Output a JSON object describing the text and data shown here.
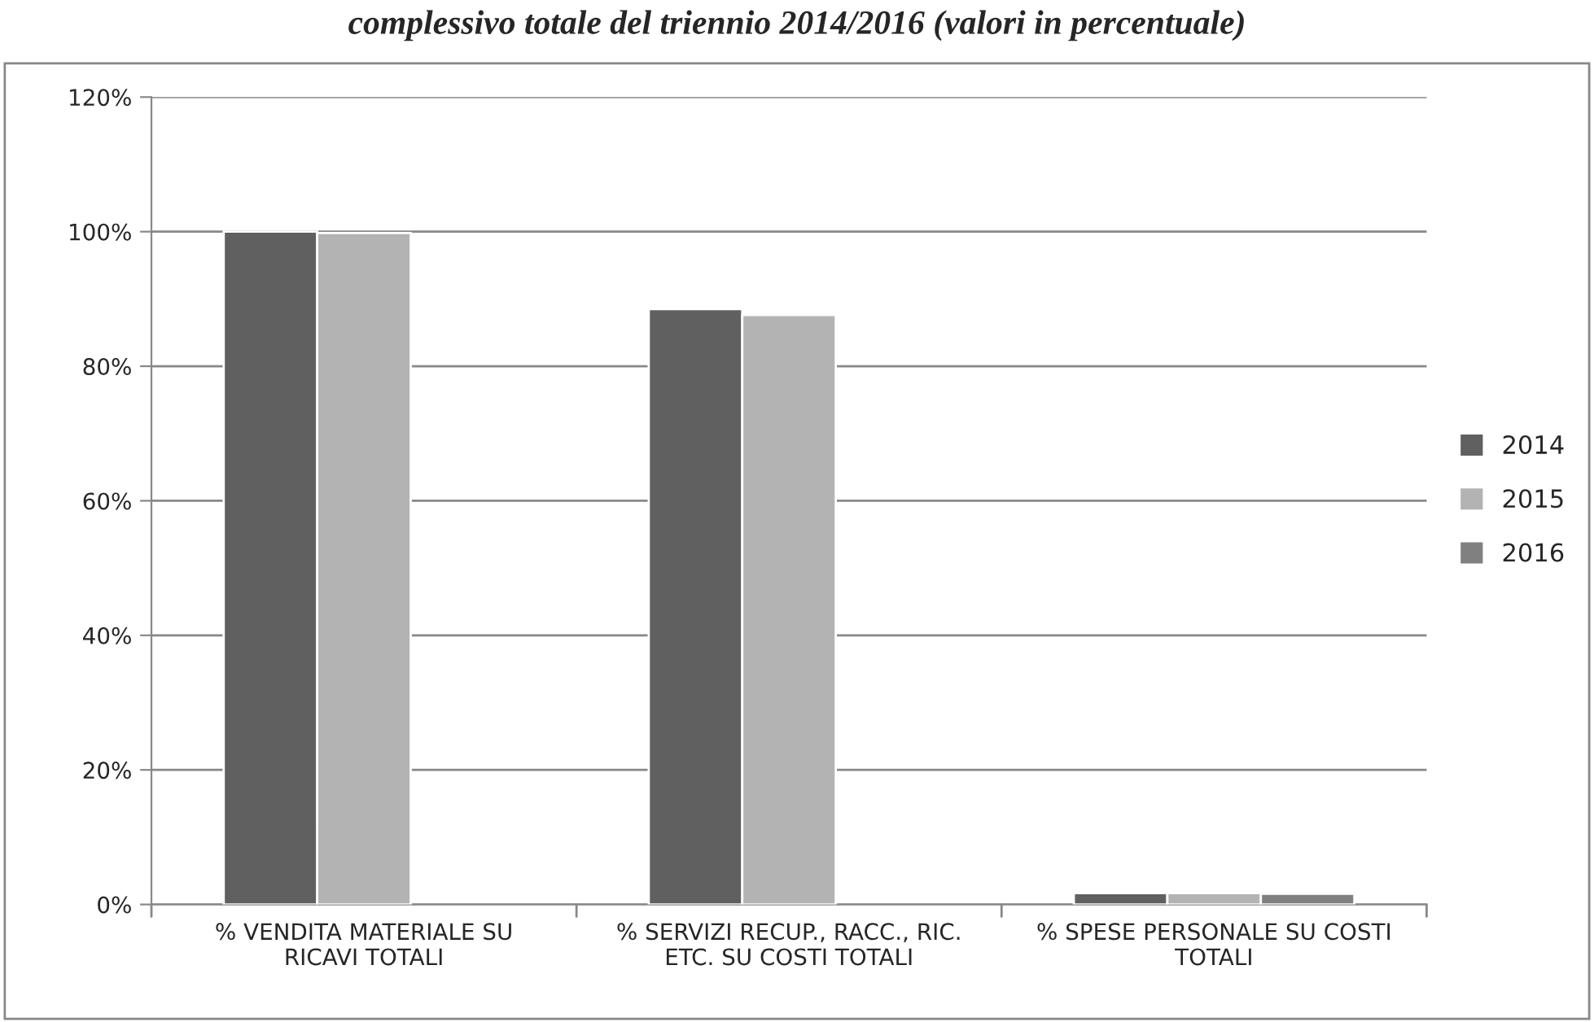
{
  "chart_data": {
    "type": "bar",
    "title": "complessivo totale del triennio 2014/2016 (valori in percentuale)",
    "categories": [
      "% VENDITA MATERIALE SU\nRICAVI TOTALI",
      "% SERVIZI RECUP., RACC., RIC.\nETC. SU COSTI TOTALI",
      "% SPESE PERSONALE SU COSTI\nTOTALI"
    ],
    "series": [
      {
        "name": "2014",
        "color": "#606060",
        "values": [
          100,
          88.5,
          1.7
        ]
      },
      {
        "name": "2015",
        "color": "#b3b3b3",
        "values": [
          99.8,
          87.6,
          1.7
        ]
      },
      {
        "name": "2016",
        "color": "#808080",
        "values": [
          null,
          null,
          1.6
        ]
      }
    ],
    "ylim": [
      0,
      120
    ],
    "yticks": [
      {
        "value": 0,
        "label": "0%"
      },
      {
        "value": 20,
        "label": "20%"
      },
      {
        "value": 40,
        "label": "40%"
      },
      {
        "value": 60,
        "label": "60%"
      },
      {
        "value": 80,
        "label": "80%"
      },
      {
        "value": 100,
        "label": "100%"
      },
      {
        "value": 120,
        "label": "120%"
      }
    ],
    "grid": "y",
    "legend": "right"
  }
}
